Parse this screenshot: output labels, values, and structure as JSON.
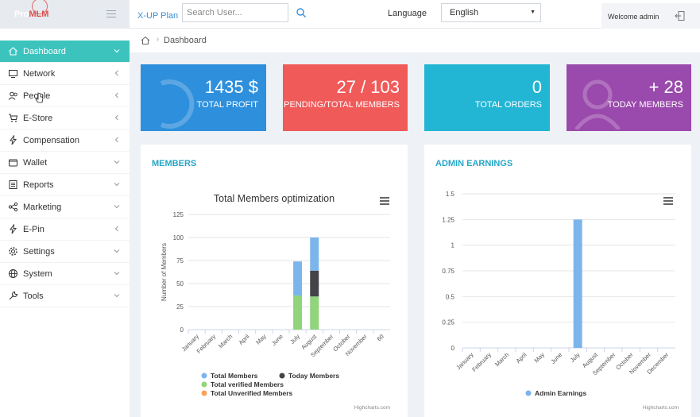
{
  "header": {
    "logo_pre": "Pro",
    "logo_main": "MLM",
    "plan_link": "X-UP Plan",
    "search_placeholder": "Search User...",
    "language_label": "Language",
    "language_value": "English",
    "welcome": "Welcome admin"
  },
  "sidebar": {
    "items": [
      {
        "label": "Dashboard",
        "icon": "home-icon",
        "chevron": "down"
      },
      {
        "label": "Network",
        "icon": "monitor-icon",
        "chevron": "left"
      },
      {
        "label": "People",
        "icon": "people-icon",
        "chevron": "left"
      },
      {
        "label": "E-Store",
        "icon": "cart-icon",
        "chevron": "left"
      },
      {
        "label": "Compensation",
        "icon": "bolt-icon",
        "chevron": "left"
      },
      {
        "label": "Wallet",
        "icon": "wallet-icon",
        "chevron": "down"
      },
      {
        "label": "Reports",
        "icon": "reports-icon",
        "chevron": "down"
      },
      {
        "label": "Marketing",
        "icon": "share-icon",
        "chevron": "down"
      },
      {
        "label": "E-Pin",
        "icon": "bolt-icon",
        "chevron": "left"
      },
      {
        "label": "Settings",
        "icon": "gear-icon",
        "chevron": "down"
      },
      {
        "label": "System",
        "icon": "globe-icon",
        "chevron": "down"
      },
      {
        "label": "Tools",
        "icon": "wrench-icon",
        "chevron": "down"
      }
    ]
  },
  "breadcrumb": {
    "current": "Dashboard"
  },
  "cards": [
    {
      "value": "1435 $",
      "label": "TOTAL PROFIT",
      "color": "#2e8fdc"
    },
    {
      "value": "27 / 103",
      "label": "PENDING/TOTAL MEMBERS",
      "color": "#f05a59"
    },
    {
      "value": "0",
      "label": "TOTAL ORDERS",
      "color": "#22b5d4"
    },
    {
      "value": "+ 28",
      "label": "TODAY MEMBERS",
      "color": "#9a49ac"
    }
  ],
  "members_panel": {
    "title": "MEMBERS",
    "credit": "Highcharts.com"
  },
  "earnings_panel": {
    "title": "ADMIN EARNINGS",
    "credit": "Highcharts.com"
  },
  "chart_data": [
    {
      "type": "bar",
      "stacked": true,
      "title": "Total Members optimization",
      "ylabel": "Number of Members",
      "xlabel": "",
      "ylim": [
        0,
        125
      ],
      "yticks": [
        0,
        25,
        50,
        75,
        100,
        125
      ],
      "categories": [
        "January",
        "February",
        "March",
        "April",
        "May",
        "June",
        "July",
        "August",
        "September",
        "October",
        "November",
        "60"
      ],
      "series": [
        {
          "name": "Total verified Members",
          "color": "#90d47b",
          "values": [
            0,
            0,
            0,
            0,
            0,
            0,
            37,
            36,
            0,
            0,
            0,
            0
          ]
        },
        {
          "name": "Today Members",
          "color": "#434348",
          "values": [
            0,
            0,
            0,
            0,
            0,
            0,
            0,
            28,
            0,
            0,
            0,
            0
          ]
        },
        {
          "name": "Total Members",
          "color": "#7cb5ec",
          "values": [
            0,
            0,
            0,
            0,
            0,
            0,
            37,
            36,
            0,
            0,
            0,
            0
          ]
        },
        {
          "name": "Total Unverified Members",
          "color": "#f7a35c",
          "values": [
            0,
            0,
            0,
            0,
            0,
            0,
            0,
            0,
            0,
            0,
            0,
            0
          ]
        }
      ],
      "legend": [
        "Total Members",
        "Today Members",
        "Total verified Members",
        "Total Unverified Members"
      ],
      "legend_position": "bottom"
    },
    {
      "type": "bar",
      "title": "",
      "ylabel": "",
      "xlabel": "",
      "ylim": [
        0,
        1.5
      ],
      "yticks": [
        "0",
        "0.25",
        "0.5",
        "0.75",
        "1",
        "1.25",
        "1.5"
      ],
      "categories": [
        "January",
        "February",
        "March",
        "April",
        "May",
        "June",
        "July",
        "August",
        "September",
        "October",
        "November",
        "December"
      ],
      "series": [
        {
          "name": "Admin Earnings",
          "color": "#7cb5ec",
          "values": [
            0,
            0,
            0,
            0,
            0,
            0,
            1.25,
            0,
            0,
            0,
            0,
            0
          ]
        }
      ],
      "legend_position": "bottom"
    }
  ]
}
